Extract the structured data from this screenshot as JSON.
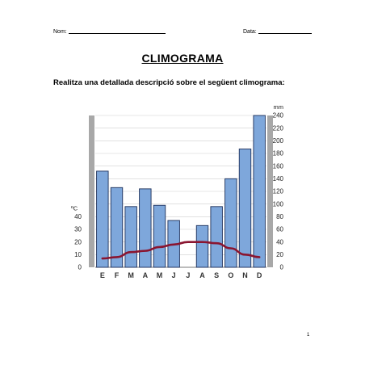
{
  "header": {
    "name_label": "Nom:",
    "date_label": "Data:"
  },
  "title": "CLIMOGRAMA",
  "instruction": "Realitza una detallada descripció sobre el següent climograma:",
  "page_number": "1",
  "colors": {
    "bar_fill": "#7ea7db",
    "bar_stroke": "#1c2f5a",
    "line": "#8a1530",
    "side_band": "#a8a8a8",
    "grid": "#cfcfcf"
  },
  "chart_data": {
    "type": "bar",
    "categories": [
      "E",
      "F",
      "M",
      "A",
      "M",
      "J",
      "J",
      "A",
      "S",
      "O",
      "N",
      "D"
    ],
    "series": [
      {
        "type": "bar",
        "axis": "right",
        "values": [
          152,
          126,
          96,
          124,
          98,
          74,
          0,
          66,
          96,
          140,
          187,
          240
        ]
      },
      {
        "type": "line",
        "axis": "left",
        "values": [
          7,
          8,
          12,
          13,
          16,
          18,
          20,
          20,
          19,
          15,
          10,
          8
        ]
      }
    ],
    "left_axis": {
      "label": "ºC",
      "ticks": [
        0,
        10,
        20,
        30,
        40
      ],
      "range": [
        0,
        120
      ]
    },
    "right_axis": {
      "label": "mm",
      "ticks": [
        0,
        20,
        40,
        60,
        80,
        100,
        120,
        140,
        160,
        180,
        200,
        220,
        240
      ],
      "range": [
        0,
        240
      ]
    },
    "grid": true
  }
}
